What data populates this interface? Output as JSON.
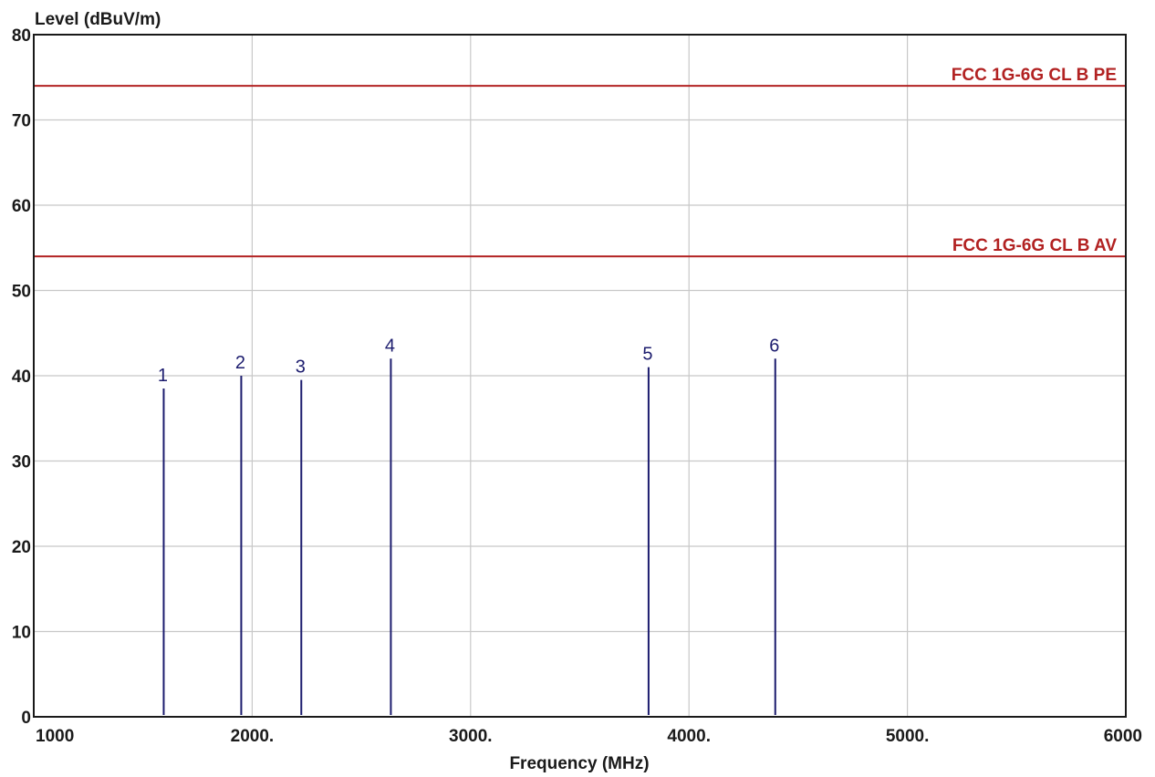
{
  "chart_data": {
    "type": "bar",
    "title": "",
    "xlabel": "Frequency (MHz)",
    "ylabel": "Level (dBuV/m)",
    "xlim": [
      1000,
      6000
    ],
    "ylim": [
      0,
      80
    ],
    "grid": true,
    "x_ticks": [
      {
        "value": 1000,
        "label": "1000"
      },
      {
        "value": 2000,
        "label": "2000."
      },
      {
        "value": 3000,
        "label": "3000."
      },
      {
        "value": 4000,
        "label": "4000."
      },
      {
        "value": 5000,
        "label": "5000."
      },
      {
        "value": 6000,
        "label": "6000"
      }
    ],
    "y_ticks": [
      {
        "value": 0,
        "label": "0"
      },
      {
        "value": 10,
        "label": "10"
      },
      {
        "value": 20,
        "label": "20"
      },
      {
        "value": 30,
        "label": "30"
      },
      {
        "value": 40,
        "label": "40"
      },
      {
        "value": 50,
        "label": "50"
      },
      {
        "value": 60,
        "label": "60"
      },
      {
        "value": 70,
        "label": "70"
      },
      {
        "value": 80,
        "label": "80"
      }
    ],
    "limit_lines": [
      {
        "label": "FCC 1G-6G CL B  PE",
        "value": 74,
        "color": "#b22222"
      },
      {
        "label": "FCC 1G-6G CL B  AV",
        "value": 54,
        "color": "#b22222"
      }
    ],
    "markers": [
      {
        "label": "1",
        "x": 1595,
        "y": 38.5
      },
      {
        "label": "2",
        "x": 1950,
        "y": 40
      },
      {
        "label": "3",
        "x": 2225,
        "y": 39.5
      },
      {
        "label": "4",
        "x": 2635,
        "y": 42
      },
      {
        "label": "5",
        "x": 3815,
        "y": 41
      },
      {
        "label": "6",
        "x": 4395,
        "y": 42
      }
    ],
    "marker_color": "#1c1c6e",
    "grid_color": "#c8c8c8",
    "axis_color": "#1a1a1a"
  }
}
